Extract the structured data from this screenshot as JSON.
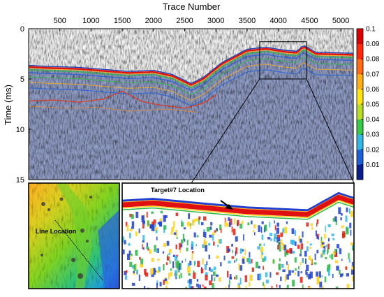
{
  "chart_data": {
    "type": "heatmap",
    "xlabel": "Trace Number",
    "ylabel": "Time (ms)",
    "x_ticks": [
      500,
      1000,
      1500,
      2000,
      2500,
      3000,
      3500,
      4000,
      4500,
      5000
    ],
    "y_ticks": [
      0,
      5,
      10,
      15
    ],
    "xlim": [
      0,
      5200
    ],
    "ylim": [
      0,
      15
    ],
    "colorbar": {
      "ticks": [
        "0.1",
        "0.09",
        "0.08",
        "0.07",
        "0.06",
        "0.05",
        "0.04",
        "0.03",
        "0.02",
        "0.01"
      ],
      "range": [
        0,
        0.1
      ],
      "colors": [
        "#0a1e8c",
        "#1f5fd6",
        "#35b7e6",
        "#39c94a",
        "#b8dc2a",
        "#ffe516",
        "#ffae17",
        "#ff6a12",
        "#ff2a0d",
        "#d90000"
      ]
    },
    "seafloor_reflector": {
      "x": [
        0,
        300,
        800,
        1200,
        1600,
        2000,
        2300,
        2600,
        2800,
        3100,
        3500,
        3800,
        4100,
        4300,
        4400,
        4600,
        5200
      ],
      "time_ms": [
        3.8,
        3.9,
        4.0,
        4.2,
        4.4,
        4.3,
        4.7,
        5.6,
        5.0,
        3.5,
        2.2,
        2.0,
        2.3,
        2.4,
        1.8,
        2.5,
        2.6
      ]
    },
    "zoom_box": {
      "x_range": [
        3700,
        4450
      ],
      "time_range_ms": [
        1.3,
        5.0
      ]
    },
    "insets": [
      {
        "name": "map",
        "label": "Line Location"
      },
      {
        "name": "zoom",
        "label": "Target#7 Location"
      }
    ]
  }
}
